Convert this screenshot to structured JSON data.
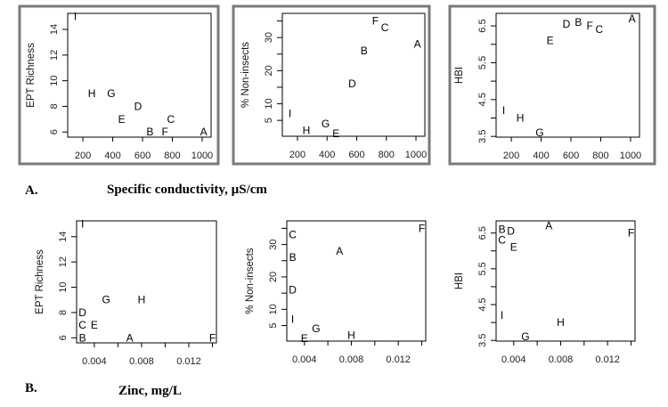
{
  "captions": {
    "a_letter": "A.",
    "a_text": "Specific conductivity, µS/cm",
    "b_letter": "B.",
    "b_text": "Zinc, mg/L"
  },
  "chart_data": [
    {
      "type": "scatter",
      "ylabel": "EPT Richness",
      "xlabel": "",
      "xlim": [
        98,
        1060
      ],
      "ylim": [
        5.6,
        15.25
      ],
      "xticks": [
        200,
        400,
        600,
        800,
        1000
      ],
      "xticklabels": [
        "200",
        "400",
        "600",
        "800",
        "1000"
      ],
      "yticks": [
        6,
        8,
        10,
        12,
        14
      ],
      "yticklabels": [
        "6",
        "8",
        "10",
        "12",
        "14"
      ],
      "framed": true,
      "points": [
        {
          "label": "A",
          "x": 1010,
          "y": 6
        },
        {
          "label": "B",
          "x": 650,
          "y": 6
        },
        {
          "label": "C",
          "x": 790,
          "y": 7
        },
        {
          "label": "D",
          "x": 570,
          "y": 8
        },
        {
          "label": "E",
          "x": 460,
          "y": 7
        },
        {
          "label": "F",
          "x": 750,
          "y": 6
        },
        {
          "label": "G",
          "x": 390,
          "y": 9
        },
        {
          "label": "H",
          "x": 260,
          "y": 9
        },
        {
          "label": "I",
          "x": 125,
          "y": 15
        }
      ]
    },
    {
      "type": "scatter",
      "ylabel": "% Non-insects",
      "xlabel": "",
      "xlim": [
        98,
        1060
      ],
      "ylim": [
        0.2,
        37.3
      ],
      "xticks": [
        200,
        400,
        600,
        800,
        1000
      ],
      "xticklabels": [
        "200",
        "400",
        "600",
        "800",
        "1000"
      ],
      "yticks": [
        5,
        10,
        15,
        20,
        25,
        30,
        35
      ],
      "yticklabels": [
        "5",
        "10",
        "",
        "20",
        "",
        "30",
        ""
      ],
      "framed": true,
      "points": [
        {
          "label": "A",
          "x": 1010,
          "y": 28
        },
        {
          "label": "B",
          "x": 650,
          "y": 26
        },
        {
          "label": "C",
          "x": 790,
          "y": 33
        },
        {
          "label": "D",
          "x": 570,
          "y": 16
        },
        {
          "label": "E",
          "x": 460,
          "y": 1
        },
        {
          "label": "F",
          "x": 750,
          "y": 35
        },
        {
          "label": "G",
          "x": 390,
          "y": 4
        },
        {
          "label": "H",
          "x": 260,
          "y": 2
        },
        {
          "label": "I",
          "x": 125,
          "y": 7
        }
      ]
    },
    {
      "type": "scatter",
      "ylabel": "HBI",
      "xlabel": "",
      "xlim": [
        98,
        1060
      ],
      "ylim": [
        3.48,
        6.84
      ],
      "xticks": [
        200,
        400,
        600,
        800,
        1000
      ],
      "xticklabels": [
        "200",
        "400",
        "600",
        "800",
        "1000"
      ],
      "yticks": [
        3.5,
        4.0,
        4.5,
        5.0,
        5.5,
        6.0,
        6.5
      ],
      "yticklabels": [
        "3.5",
        "",
        "4.5",
        "",
        "5.5",
        "",
        "6.5"
      ],
      "framed": true,
      "points": [
        {
          "label": "A",
          "x": 1010,
          "y": 6.7
        },
        {
          "label": "B",
          "x": 650,
          "y": 6.6
        },
        {
          "label": "C",
          "x": 790,
          "y": 6.4
        },
        {
          "label": "D",
          "x": 570,
          "y": 6.55
        },
        {
          "label": "E",
          "x": 460,
          "y": 6.1
        },
        {
          "label": "F",
          "x": 750,
          "y": 6.5
        },
        {
          "label": "G",
          "x": 390,
          "y": 3.6
        },
        {
          "label": "H",
          "x": 260,
          "y": 4.0
        },
        {
          "label": "I",
          "x": 125,
          "y": 4.2
        }
      ]
    },
    {
      "type": "scatter",
      "ylabel": "EPT Richness",
      "xlabel": "",
      "xlim": [
        0.0025,
        0.01434
      ],
      "ylim": [
        5.6,
        15.25
      ],
      "xticks": [
        0.004,
        0.006,
        0.008,
        0.01,
        0.012,
        0.014
      ],
      "xticklabels": [
        "0.004",
        "",
        "0.008",
        "",
        "0.012",
        ""
      ],
      "yticks": [
        6,
        8,
        10,
        12,
        14
      ],
      "yticklabels": [
        "6",
        "8",
        "10",
        "12",
        "14"
      ],
      "framed": false,
      "points": [
        {
          "label": "A",
          "x": 0.007,
          "y": 6
        },
        {
          "label": "B",
          "x": 0.003,
          "y": 6
        },
        {
          "label": "C",
          "x": 0.003,
          "y": 7
        },
        {
          "label": "D",
          "x": 0.003,
          "y": 8
        },
        {
          "label": "E",
          "x": 0.0037,
          "y": 7
        },
        {
          "label": "F",
          "x": 0.014,
          "y": 6
        },
        {
          "label": "G",
          "x": 0.005,
          "y": 9
        },
        {
          "label": "H",
          "x": 0.008,
          "y": 9
        },
        {
          "label": "I",
          "x": 0.003,
          "y": 15
        }
      ]
    },
    {
      "type": "scatter",
      "ylabel": "% Non-insects",
      "xlabel": "",
      "xlim": [
        0.0025,
        0.01434
      ],
      "ylim": [
        0.2,
        37.3
      ],
      "xticks": [
        0.004,
        0.006,
        0.008,
        0.01,
        0.012,
        0.014
      ],
      "xticklabels": [
        "0.004",
        "",
        "0.008",
        "",
        "0.012",
        ""
      ],
      "yticks": [
        5,
        10,
        15,
        20,
        25,
        30,
        35
      ],
      "yticklabels": [
        "5",
        "10",
        "",
        "20",
        "",
        "30",
        ""
      ],
      "framed": false,
      "points": [
        {
          "label": "A",
          "x": 0.007,
          "y": 28
        },
        {
          "label": "B",
          "x": 0.003,
          "y": 26
        },
        {
          "label": "C",
          "x": 0.003,
          "y": 33
        },
        {
          "label": "D",
          "x": 0.003,
          "y": 16
        },
        {
          "label": "E",
          "x": 0.004,
          "y": 1
        },
        {
          "label": "F",
          "x": 0.014,
          "y": 35
        },
        {
          "label": "G",
          "x": 0.005,
          "y": 4
        },
        {
          "label": "H",
          "x": 0.008,
          "y": 2
        },
        {
          "label": "I",
          "x": 0.003,
          "y": 7
        }
      ]
    },
    {
      "type": "scatter",
      "ylabel": "HBI",
      "xlabel": "",
      "xlim": [
        0.0025,
        0.01434
      ],
      "ylim": [
        3.48,
        6.84
      ],
      "xticks": [
        0.004,
        0.006,
        0.008,
        0.01,
        0.012,
        0.014
      ],
      "xticklabels": [
        "0.004",
        "",
        "0.008",
        "",
        "0.012",
        ""
      ],
      "yticks": [
        3.5,
        4.0,
        4.5,
        5.0,
        5.5,
        6.0,
        6.5
      ],
      "yticklabels": [
        "3.5",
        "",
        "4.5",
        "",
        "5.5",
        "",
        "6.5"
      ],
      "framed": false,
      "points": [
        {
          "label": "A",
          "x": 0.007,
          "y": 6.7
        },
        {
          "label": "B",
          "x": 0.003,
          "y": 6.6
        },
        {
          "label": "C",
          "x": 0.003,
          "y": 6.4
        },
        {
          "label": "D",
          "x": 0.003,
          "y": 6.55
        },
        {
          "label": "E",
          "x": 0.004,
          "y": 6.1
        },
        {
          "label": "F",
          "x": 0.014,
          "y": 6.5
        },
        {
          "label": "G",
          "x": 0.005,
          "y": 3.6
        },
        {
          "label": "H",
          "x": 0.008,
          "y": 4.0
        },
        {
          "label": "I",
          "x": 0.003,
          "y": 4.2
        }
      ]
    }
  ]
}
